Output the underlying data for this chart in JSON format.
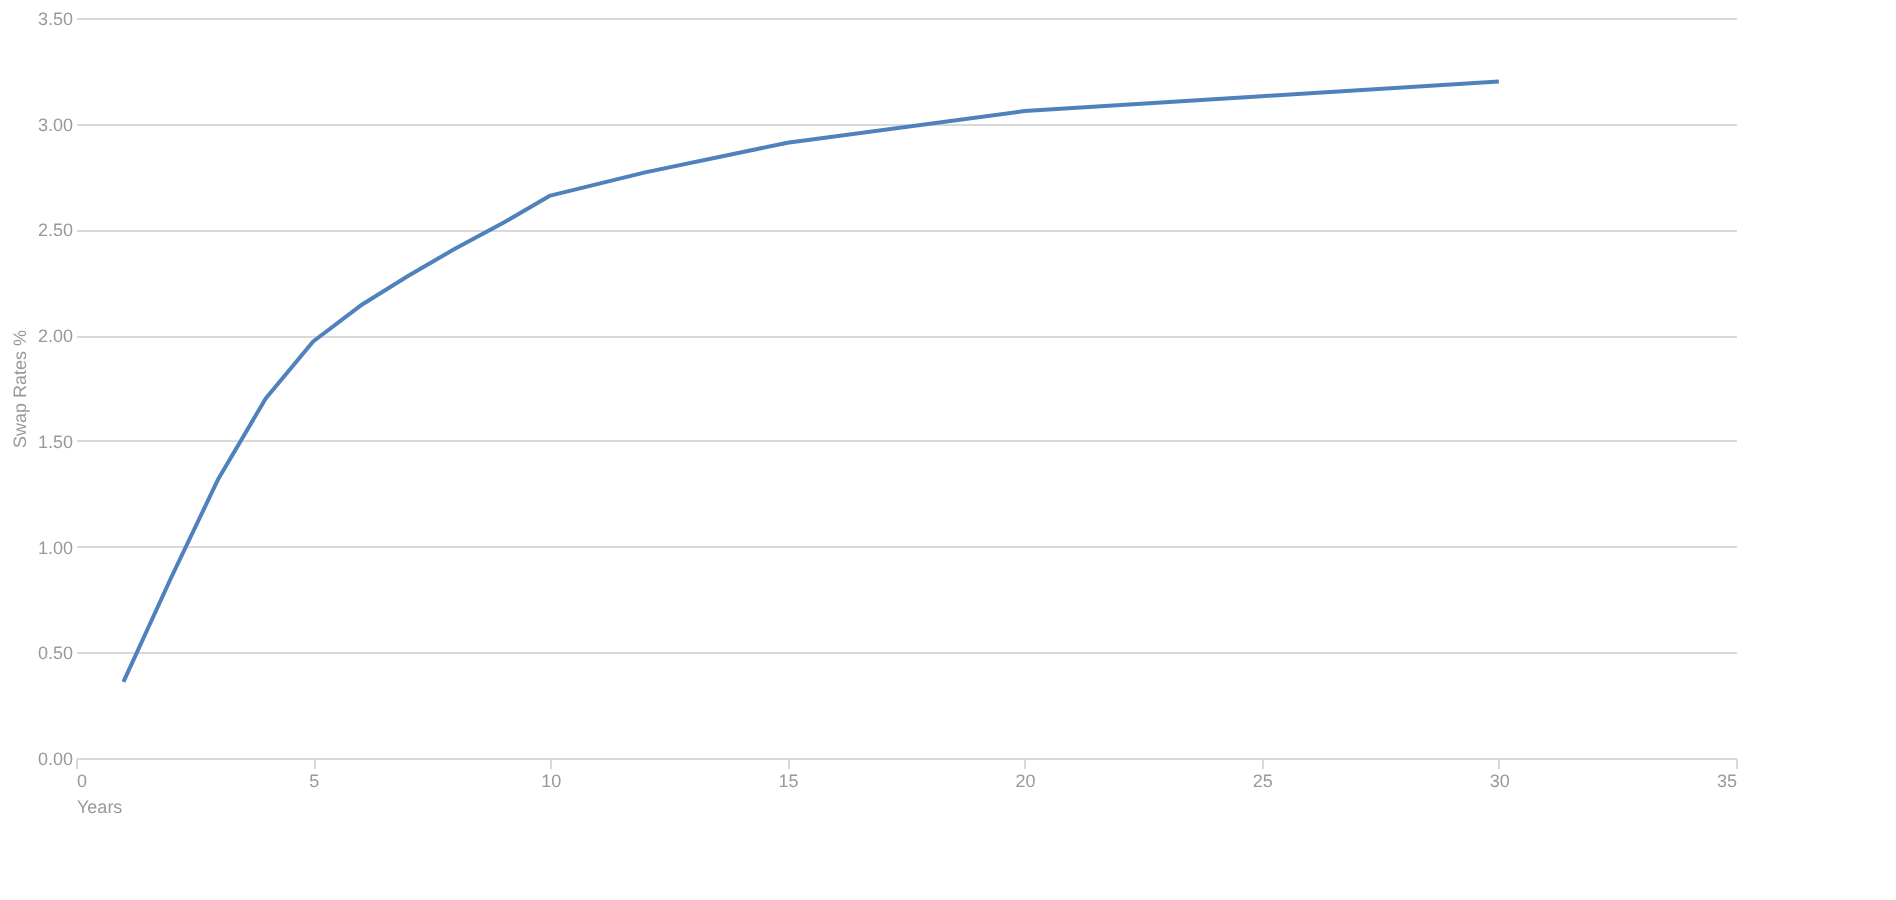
{
  "chart_data": {
    "type": "line",
    "xlabel": "Years",
    "ylabel": "Swap Rates %",
    "x": [
      1,
      2,
      3,
      4,
      5,
      6,
      7,
      8,
      9,
      10,
      12,
      15,
      20,
      25,
      30
    ],
    "series": [
      {
        "color": "#4f81bd",
        "values": [
          0.36,
          0.85,
          1.32,
          1.7,
          1.97,
          2.14,
          2.28,
          2.41,
          2.53,
          2.66,
          2.77,
          2.91,
          3.06,
          3.13,
          3.2
        ]
      }
    ],
    "xlim": [
      0,
      35
    ],
    "xticks": [
      0,
      5,
      10,
      15,
      20,
      25,
      30,
      35
    ],
    "ylim": [
      0,
      3.5
    ],
    "yticks": [
      {
        "value": 0,
        "label": "0.00"
      },
      {
        "value": 0.5,
        "label": "0.50"
      },
      {
        "value": 1,
        "label": "1.00"
      },
      {
        "value": 1.5,
        "label": "1.50"
      },
      {
        "value": 2,
        "label": "2.00"
      },
      {
        "value": 2.5,
        "label": "2.50"
      },
      {
        "value": 3,
        "label": "3.00"
      },
      {
        "value": 3.5,
        "label": "3.50"
      }
    ],
    "grid": "y",
    "legend": false,
    "marker": "none",
    "line_style": "solid"
  }
}
